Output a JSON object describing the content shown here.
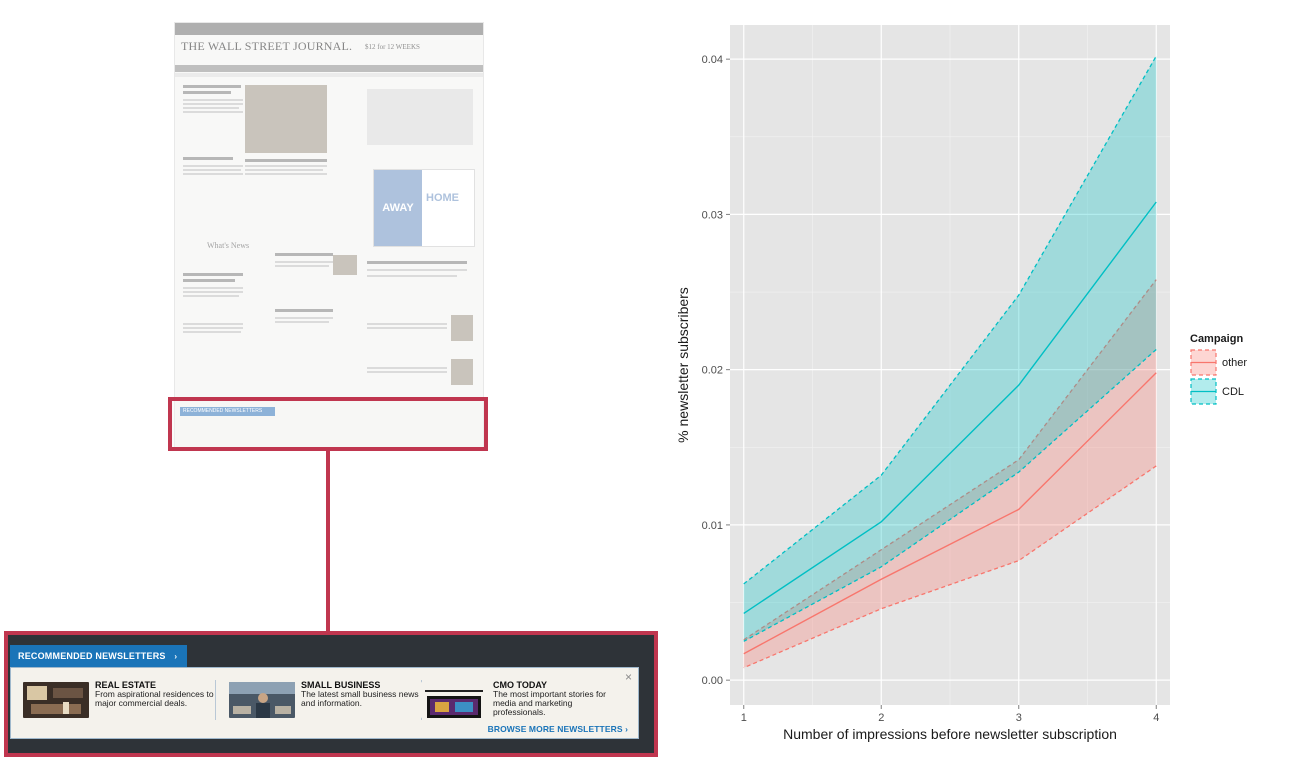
{
  "thumbnail": {
    "logo": "THE WALL STREET JOURNAL.",
    "promo": "$12 for 12 WEEKS",
    "whats_news": "What's News",
    "ad_away": "AWAY",
    "ad_home": "HOME",
    "recommended_label": "RECOMMENDED NEWSLETTERS"
  },
  "banner": {
    "tab_label": "RECOMMENDED NEWSLETTERS",
    "tab_chevron": "›",
    "close_icon": "×",
    "browse_label": "BROWSE MORE NEWSLETTERS ›",
    "items": [
      {
        "title": "REAL ESTATE",
        "desc": "From aspirational residences to major commercial deals.",
        "icon": "real-estate-photo"
      },
      {
        "title": "SMALL BUSINESS",
        "desc": "The latest small business news and information.",
        "icon": "small-business-photo"
      },
      {
        "title": "CMO TODAY",
        "desc": "The most important stories for media and marketing professionals.",
        "icon": "cmo-today-photo"
      }
    ]
  },
  "colors": {
    "callout": "#c0364f",
    "panel_bg": "#e5e5e5",
    "other": "#f8766d",
    "cdl": "#00bfc4"
  },
  "chart_data": {
    "type": "line",
    "xlabel": "Number of impressions before newsletter subscription",
    "ylabel": "% newsletter subscribers",
    "x": [
      1,
      2,
      3,
      4
    ],
    "xlim": [
      0.9,
      4.1
    ],
    "ylim": [
      -0.0016,
      0.0422
    ],
    "yticks": [
      0.0,
      0.01,
      0.02,
      0.03,
      0.04
    ],
    "ytick_labels": [
      "0.00",
      "0.01",
      "0.02",
      "0.03",
      "0.04"
    ],
    "xtick_labels": [
      "1",
      "2",
      "3",
      "4"
    ],
    "grid": true,
    "legend": {
      "title": "Campaign",
      "position": "right"
    },
    "series": [
      {
        "name": "other",
        "color": "#f8766d",
        "values": [
          0.0017,
          0.0065,
          0.011,
          0.0198
        ],
        "lower": [
          0.0008,
          0.0046,
          0.0077,
          0.0138
        ],
        "upper": [
          0.0026,
          0.0084,
          0.0142,
          0.0258
        ]
      },
      {
        "name": "CDL",
        "color": "#00bfc4",
        "values": [
          0.0043,
          0.0102,
          0.019,
          0.0308
        ],
        "lower": [
          0.0025,
          0.0073,
          0.0134,
          0.0213
        ],
        "upper": [
          0.0062,
          0.0132,
          0.0248,
          0.0402
        ]
      }
    ]
  }
}
